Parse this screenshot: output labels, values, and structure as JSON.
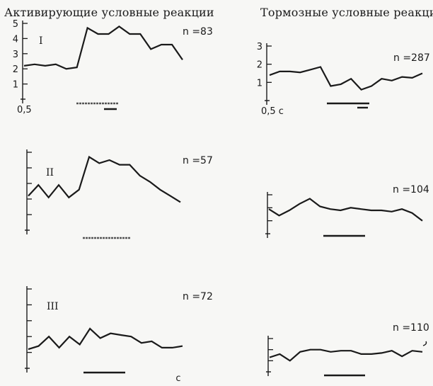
{
  "headings": {
    "left": "Активирующие условные реакции",
    "right": "Тормозные условные реакции"
  },
  "colors": {
    "ink": "#1a1a1a",
    "paper": "#f7f7f5"
  },
  "time_unit_label": "с",
  "chart_data": [
    {
      "id": "act-I",
      "type": "line",
      "column": "activating",
      "roman": "I",
      "n_label": "n =83",
      "y_ticks": [
        1,
        2,
        3,
        4,
        5
      ],
      "y_tick_labels": [
        "1",
        "2",
        "3",
        "4",
        "5"
      ],
      "x_start_label": "0,5",
      "ylim": [
        0,
        5
      ],
      "values": [
        2.2,
        2.3,
        2.2,
        2.3,
        2.0,
        2.1,
        4.7,
        4.3,
        4.3,
        4.8,
        4.3,
        4.3,
        3.3,
        3.6,
        3.6,
        2.6
      ]
    },
    {
      "id": "act-II",
      "type": "line",
      "column": "activating",
      "roman": "II",
      "n_label": "n =57",
      "y_ticks": [
        1,
        2,
        3,
        4,
        5
      ],
      "ylim": [
        0,
        5
      ],
      "values": [
        2.2,
        2.9,
        2.1,
        2.9,
        2.1,
        2.6,
        4.7,
        4.3,
        4.5,
        4.2,
        4.2,
        3.5,
        3.1,
        2.6,
        2.2,
        1.8
      ]
    },
    {
      "id": "act-III",
      "type": "line",
      "column": "activating",
      "roman": "III",
      "n_label": "n =72",
      "y_ticks": [
        1,
        2,
        3,
        4,
        5
      ],
      "ylim": [
        0,
        5
      ],
      "values": [
        1.2,
        1.4,
        2.0,
        1.3,
        2.0,
        1.5,
        2.5,
        1.9,
        2.2,
        2.1,
        2.0,
        1.6,
        1.7,
        1.3,
        1.3,
        1.4
      ]
    },
    {
      "id": "inh-1",
      "type": "line",
      "column": "inhibitory",
      "n_label": "n =287",
      "y_ticks": [
        1,
        2,
        3
      ],
      "y_tick_labels": [
        "1",
        "2",
        "3"
      ],
      "x_start_label": "0,5 с",
      "ylim": [
        0,
        3
      ],
      "values": [
        1.4,
        1.6,
        1.6,
        1.55,
        1.7,
        1.85,
        0.8,
        0.9,
        1.2,
        0.6,
        0.8,
        1.2,
        1.1,
        1.3,
        1.25,
        1.5
      ]
    },
    {
      "id": "inh-2",
      "type": "line",
      "column": "inhibitory",
      "n_label": "n =104",
      "y_ticks": [
        1,
        2,
        3
      ],
      "ylim": [
        0,
        3
      ],
      "values": [
        1.9,
        1.4,
        1.8,
        2.3,
        2.7,
        2.1,
        1.9,
        1.8,
        2.0,
        1.9,
        1.8,
        1.8,
        1.7,
        1.9,
        1.6,
        1.0
      ]
    },
    {
      "id": "inh-3",
      "type": "line",
      "column": "inhibitory",
      "n_label": "n =110",
      "y_ticks": [
        1,
        2,
        3
      ],
      "ylim": [
        0,
        3
      ],
      "values": [
        1.3,
        1.6,
        1.0,
        1.8,
        2.0,
        2.0,
        1.8,
        1.9,
        1.9,
        1.6,
        1.6,
        1.7,
        1.9,
        1.4,
        1.9,
        1.8
      ]
    }
  ]
}
